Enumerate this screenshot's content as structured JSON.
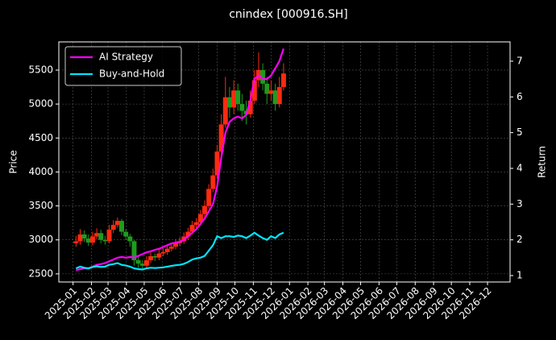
{
  "chart_data": {
    "type": "candlestick",
    "title": "cnindex [000916.SH]",
    "ylabel": "Price",
    "y2label": "Return",
    "x": [
      "2025-01-06",
      "2025-01-13",
      "2025-01-20",
      "2025-01-27",
      "2025-02-03",
      "2025-02-10",
      "2025-02-17",
      "2025-02-24",
      "2025-03-03",
      "2025-03-10",
      "2025-03-17",
      "2025-03-24",
      "2025-03-31",
      "2025-04-07",
      "2025-04-14",
      "2025-04-21",
      "2025-04-28",
      "2025-05-05",
      "2025-05-12",
      "2025-05-19",
      "2025-05-26",
      "2025-06-02",
      "2025-06-09",
      "2025-06-16",
      "2025-06-23",
      "2025-06-30",
      "2025-07-07",
      "2025-07-14",
      "2025-07-21",
      "2025-07-28",
      "2025-08-04",
      "2025-08-11",
      "2025-08-18",
      "2025-08-25",
      "2025-09-01",
      "2025-09-08",
      "2025-09-15",
      "2025-09-22",
      "2025-09-29",
      "2025-10-06",
      "2025-10-13",
      "2025-10-20",
      "2025-10-27",
      "2025-11-03",
      "2025-11-10",
      "2025-11-17",
      "2025-11-24",
      "2025-12-01",
      "2025-12-08",
      "2025-12-15",
      "2025-12-22"
    ],
    "open": [
      2950,
      2980,
      3080,
      3020,
      2960,
      3050,
      3100,
      3000,
      2980,
      3150,
      3220,
      3280,
      3120,
      3050,
      2980,
      2700,
      2650,
      2620,
      2700,
      2760,
      2740,
      2800,
      2820,
      2870,
      2900,
      2950,
      2980,
      3050,
      3120,
      3220,
      3260,
      3380,
      3500,
      3750,
      3950,
      4300,
      4700,
      5100,
      4950,
      5200,
      5000,
      4900,
      4850,
      5050,
      5350,
      5500,
      5300,
      5150,
      5200,
      5000,
      5250
    ],
    "high": [
      3060,
      3160,
      3140,
      3080,
      3120,
      3170,
      3150,
      3060,
      3220,
      3290,
      3330,
      3310,
      3160,
      3090,
      3000,
      2760,
      2700,
      2760,
      2820,
      2800,
      2860,
      2880,
      2920,
      2960,
      3010,
      3040,
      3110,
      3180,
      3280,
      3320,
      3440,
      3580,
      3820,
      4050,
      4400,
      4850,
      5400,
      5250,
      5350,
      5300,
      5150,
      5050,
      5200,
      5500,
      5760,
      5600,
      5400,
      5350,
      5300,
      5400,
      5600
    ],
    "low": [
      2900,
      2930,
      2970,
      2910,
      2920,
      3010,
      2950,
      2930,
      2950,
      3100,
      3180,
      3070,
      3000,
      2900,
      2620,
      2590,
      2560,
      2590,
      2660,
      2690,
      2700,
      2760,
      2780,
      2830,
      2860,
      2910,
      2940,
      3000,
      3080,
      3170,
      3210,
      3330,
      3460,
      3700,
      3900,
      4250,
      4650,
      4800,
      4850,
      4900,
      4750,
      4700,
      4800,
      5000,
      5250,
      5200,
      5000,
      5050,
      4900,
      4950,
      5200
    ],
    "close": [
      2980,
      3080,
      3020,
      2960,
      3050,
      3100,
      3000,
      2980,
      3150,
      3220,
      3280,
      3120,
      3050,
      2980,
      2700,
      2650,
      2620,
      2700,
      2760,
      2740,
      2800,
      2820,
      2870,
      2900,
      2950,
      2980,
      3050,
      3120,
      3220,
      3260,
      3380,
      3500,
      3750,
      3950,
      4300,
      4700,
      5100,
      4950,
      5200,
      5000,
      4900,
      4850,
      5050,
      5350,
      5500,
      5300,
      5150,
      5200,
      5000,
      5250,
      5450
    ],
    "up_color": "#ff2a10",
    "down_color": "#1f9a1f",
    "series": [
      {
        "name": "AI Strategy",
        "color": "#ff00ff",
        "axis": "y2",
        "values": [
          1.15,
          1.18,
          1.2,
          1.2,
          1.25,
          1.3,
          1.32,
          1.35,
          1.4,
          1.45,
          1.5,
          1.52,
          1.5,
          1.52,
          1.5,
          1.55,
          1.6,
          1.65,
          1.68,
          1.72,
          1.75,
          1.8,
          1.85,
          1.9,
          1.92,
          1.95,
          2.0,
          2.1,
          2.2,
          2.3,
          2.45,
          2.6,
          2.8,
          3.0,
          3.5,
          4.3,
          5.0,
          5.3,
          5.4,
          5.45,
          5.4,
          5.5,
          5.9,
          6.5,
          6.6,
          6.5,
          6.5,
          6.6,
          6.8,
          7.0,
          7.35
        ]
      },
      {
        "name": "Buy-and-Hold",
        "color": "#00e5ff",
        "axis": "y2",
        "values": [
          1.2,
          1.25,
          1.22,
          1.2,
          1.24,
          1.26,
          1.24,
          1.25,
          1.3,
          1.32,
          1.35,
          1.3,
          1.28,
          1.25,
          1.2,
          1.18,
          1.17,
          1.2,
          1.22,
          1.21,
          1.22,
          1.23,
          1.25,
          1.27,
          1.29,
          1.3,
          1.33,
          1.38,
          1.45,
          1.48,
          1.5,
          1.55,
          1.7,
          1.85,
          2.1,
          2.05,
          2.1,
          2.1,
          2.08,
          2.12,
          2.1,
          2.05,
          2.12,
          2.2,
          2.12,
          2.05,
          2.0,
          2.1,
          2.05,
          2.15,
          2.2
        ]
      }
    ],
    "xlim": [
      "2024-12-08",
      "2027-01-08"
    ],
    "xticks": [
      "2025-01",
      "2025-02",
      "2025-03",
      "2025-04",
      "2025-05",
      "2025-06",
      "2025-07",
      "2025-08",
      "2025-09",
      "2025-10",
      "2025-11",
      "2025-12",
      "2026-01",
      "2026-02",
      "2026-03",
      "2026-04",
      "2026-05",
      "2026-06",
      "2026-07",
      "2026-08",
      "2026-09",
      "2026-10",
      "2026-11",
      "2026-12"
    ],
    "ylim": [
      2380,
      5915
    ],
    "yticks": [
      2500,
      3000,
      3500,
      4000,
      4500,
      5000,
      5500
    ],
    "y2lim": [
      0.82,
      7.54
    ],
    "y2ticks": [
      1,
      2,
      3,
      4,
      5,
      6,
      7
    ],
    "grid": true,
    "legend": "upper-left"
  }
}
